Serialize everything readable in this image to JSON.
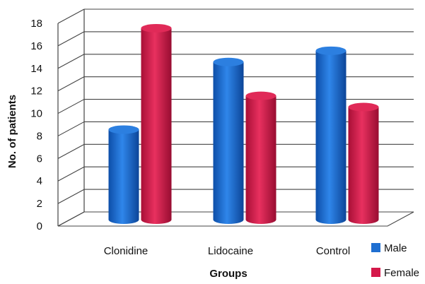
{
  "chart_data": {
    "type": "bar",
    "categories": [
      "Clonidine",
      "Lidocaine",
      "Control"
    ],
    "series": [
      {
        "name": "Male",
        "values": [
          8,
          14,
          15
        ],
        "color": "#1f6fd1"
      },
      {
        "name": "Female",
        "values": [
          17,
          11,
          10
        ],
        "color": "#d4184a"
      }
    ],
    "xlabel": "Groups",
    "ylabel": "No. of patients",
    "ylim": [
      0,
      18
    ],
    "yticks": [
      0,
      2,
      4,
      6,
      8,
      10,
      12,
      14,
      16,
      18
    ],
    "grid": true,
    "legend_position": "right",
    "style": "3d-cylinder"
  }
}
